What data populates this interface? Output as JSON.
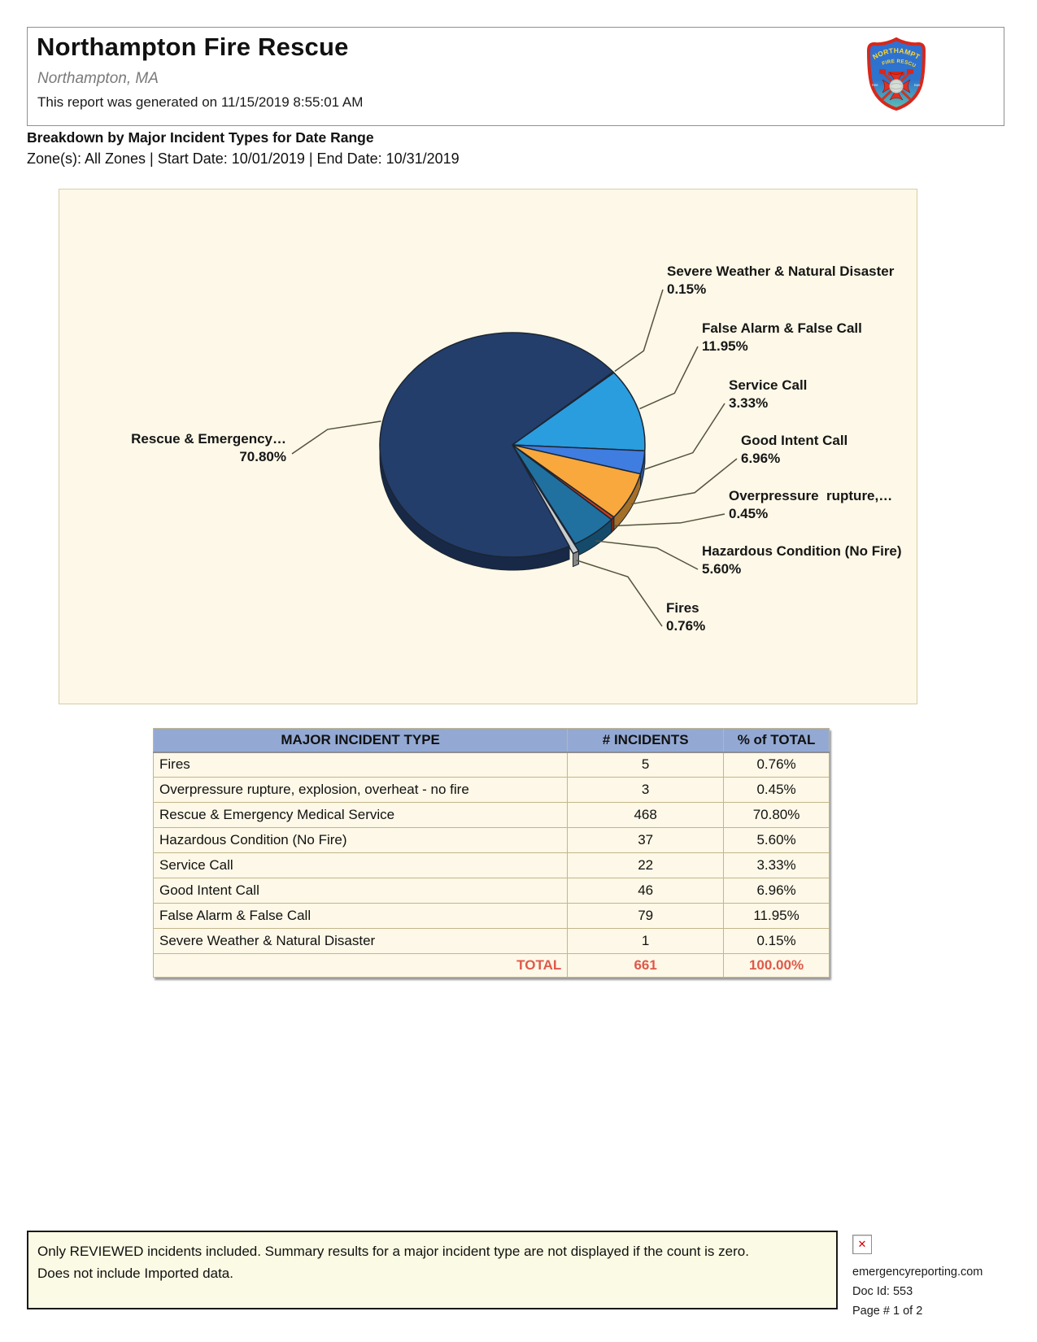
{
  "header": {
    "title": "Northampton Fire Rescue",
    "subtitle": "Northampton, MA",
    "generated": "This report was generated on 11/15/2019 8:55:01 AM",
    "logo": {
      "arc_top": "NORTHAMPTON",
      "arc_bottom": "FIRE RESCUE",
      "small_left": "FIRE",
      "small_right": "EMS"
    }
  },
  "report": {
    "title": "Breakdown by Major Incident Types for Date Range",
    "filters": "Zone(s): All Zones | Start Date: 10/01/2019 | End Date: 10/31/2019"
  },
  "chart_data": {
    "type": "pie",
    "style": "3d",
    "title": "",
    "direction": "clockwise",
    "start_angle_deg_from_3oclock": -40.56,
    "background": "#FDF8E7",
    "slices": [
      {
        "name": "Severe Weather & Natural Disaster",
        "display_label": "Severe Weather & Natural Disaster",
        "value": 1,
        "pct": 0.15,
        "pct_label": "0.15%",
        "color": "#6E6B2E"
      },
      {
        "name": "False Alarm & False Call",
        "display_label": "False Alarm & False Call",
        "value": 79,
        "pct": 11.95,
        "pct_label": "11.95%",
        "color": "#2A9DDF"
      },
      {
        "name": "Service Call",
        "display_label": "Service Call",
        "value": 22,
        "pct": 3.33,
        "pct_label": "3.33%",
        "color": "#3F7DE0"
      },
      {
        "name": "Good Intent Call",
        "display_label": "Good Intent Call",
        "value": 46,
        "pct": 6.96,
        "pct_label": "6.96%",
        "color": "#F8A83C"
      },
      {
        "name": "Overpressure rupture, explosion, overheat - no fire",
        "display_label": "Overpressure  rupture,…",
        "value": 3,
        "pct": 0.45,
        "pct_label": "0.45%",
        "color": "#CC3C18"
      },
      {
        "name": "Hazardous Condition (No Fire)",
        "display_label": "Hazardous Condition (No Fire)",
        "value": 37,
        "pct": 5.6,
        "pct_label": "5.60%",
        "color": "#2071A0"
      },
      {
        "name": "Fires",
        "display_label": "Fires",
        "value": 5,
        "pct": 0.76,
        "pct_label": "0.76%",
        "color": "#C9CDCE",
        "explode": true
      },
      {
        "name": "Rescue & Emergency Medical Service",
        "display_label": "Rescue & Emergency…",
        "value": 468,
        "pct": 70.8,
        "pct_label": "70.80%",
        "color": "#233E6B"
      }
    ]
  },
  "table": {
    "columns": [
      "MAJOR INCIDENT TYPE",
      "# INCIDENTS",
      "% of TOTAL"
    ],
    "rows": [
      [
        "Fires",
        "5",
        "0.76%"
      ],
      [
        "Overpressure rupture, explosion, overheat - no fire",
        "3",
        "0.45%"
      ],
      [
        "Rescue & Emergency Medical Service",
        "468",
        "70.80%"
      ],
      [
        "Hazardous Condition (No Fire)",
        "37",
        "5.60%"
      ],
      [
        "Service Call",
        "22",
        "3.33%"
      ],
      [
        "Good Intent Call",
        "46",
        "6.96%"
      ],
      [
        "False Alarm & False Call",
        "79",
        "11.95%"
      ],
      [
        "Severe Weather & Natural Disaster",
        "1",
        "0.15%"
      ]
    ],
    "total": {
      "label": "TOTAL",
      "count": "661",
      "pct": "100.00%"
    },
    "total_color": "#E0584A",
    "header_bg": "#93A9D4"
  },
  "footnote": {
    "line1": "Only REVIEWED incidents included.  Summary results for a major incident type are not displayed if the count is zero.",
    "line2": "Does not include Imported data."
  },
  "footer_meta": {
    "site": "emergencyreporting.com",
    "doc_id": "Doc Id: 553",
    "page": "Page # 1 of 2",
    "broken_image_glyph": "✕"
  }
}
